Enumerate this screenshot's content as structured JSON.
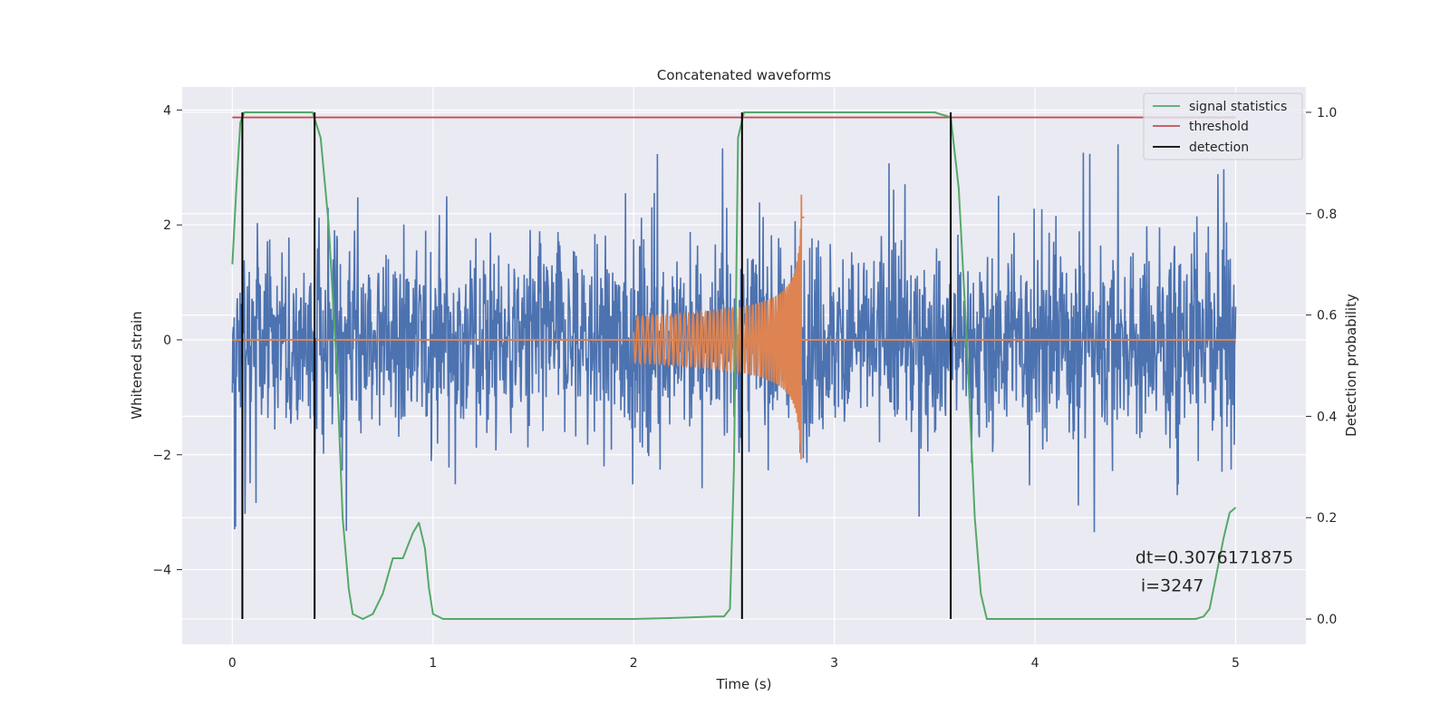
{
  "chart_data": {
    "type": "line",
    "title": "Concatenated waveforms",
    "xlabel": "Time (s)",
    "ylabel": "Whitened strain",
    "y2label": "Detection probability",
    "xlim": [
      -0.25,
      5.35
    ],
    "ylim": [
      -5.3,
      4.4
    ],
    "y2lim": [
      -0.05,
      1.05
    ],
    "x_ticks": [
      0,
      1,
      2,
      3,
      4,
      5
    ],
    "y_ticks": [
      -4,
      -2,
      0,
      2,
      4
    ],
    "y_tick_labels": [
      "−4",
      "−2",
      "0",
      "2",
      "4"
    ],
    "y2_ticks": [
      0.0,
      0.2,
      0.4,
      0.6,
      0.8,
      1.0
    ],
    "y2_tick_labels": [
      "0.0",
      "0.2",
      "0.4",
      "0.6",
      "0.8",
      "1.0"
    ],
    "grid": true,
    "legend_position": "top-right",
    "colors": {
      "background": "#eaeaf2",
      "grid": "#ffffff",
      "noise": "#4c72b0",
      "chirp": "#dd8452",
      "statistics": "#55a868",
      "threshold": "#c44e52",
      "detection": "#000000"
    },
    "series": [
      {
        "name": "noise",
        "axis": "left",
        "kind": "noise",
        "x_range": [
          0,
          5
        ],
        "typical_amplitude": 2.0,
        "extreme_amplitude": 3.5
      },
      {
        "name": "chirp",
        "axis": "left",
        "kind": "chirp",
        "x_range": [
          2.0,
          2.85
        ],
        "amplitude_start": 0.4,
        "amplitude_end": 2.2,
        "merger_time": 2.84
      },
      {
        "name": "signal statistics",
        "axis": "right",
        "x": [
          0,
          0.02,
          0.04,
          0.06,
          0.1,
          0.3,
          0.4,
          0.44,
          0.48,
          0.52,
          0.55,
          0.58,
          0.6,
          0.65,
          0.7,
          0.75,
          0.8,
          0.85,
          0.9,
          0.93,
          0.96,
          0.98,
          1.0,
          1.05,
          1.5,
          2.0,
          2.2,
          2.4,
          2.45,
          2.48,
          2.5,
          2.52,
          2.55,
          3.5,
          3.58,
          3.62,
          3.66,
          3.7,
          3.73,
          3.76,
          4.0,
          4.5,
          4.8,
          4.84,
          4.87,
          4.9,
          4.94,
          4.97,
          5.0
        ],
        "y": [
          0.7,
          0.85,
          0.98,
          1.0,
          1.0,
          1.0,
          1.0,
          0.95,
          0.78,
          0.5,
          0.2,
          0.06,
          0.01,
          0.0,
          0.01,
          0.05,
          0.12,
          0.12,
          0.17,
          0.19,
          0.14,
          0.06,
          0.01,
          0.0,
          0.0,
          0.0,
          0.002,
          0.005,
          0.005,
          0.02,
          0.3,
          0.95,
          1.0,
          1.0,
          0.99,
          0.85,
          0.55,
          0.2,
          0.05,
          0.0,
          0.0,
          0.0,
          0.0,
          0.005,
          0.02,
          0.08,
          0.16,
          0.21,
          0.22
        ]
      },
      {
        "name": "threshold",
        "axis": "right",
        "x": [
          0,
          5
        ],
        "y": [
          0.99,
          0.99
        ]
      },
      {
        "name": "detection",
        "axis": "right",
        "x": [
          0.05,
          0.41,
          2.54,
          3.58
        ],
        "y_range": [
          0,
          1
        ]
      }
    ],
    "legend": [
      "signal statistics",
      "threshold",
      "detection"
    ],
    "annotation": {
      "line1": "dt=0.3076171875",
      "line2": " i=3247",
      "x": 4.5,
      "y1": 0.11,
      "y2": 0.055
    }
  }
}
